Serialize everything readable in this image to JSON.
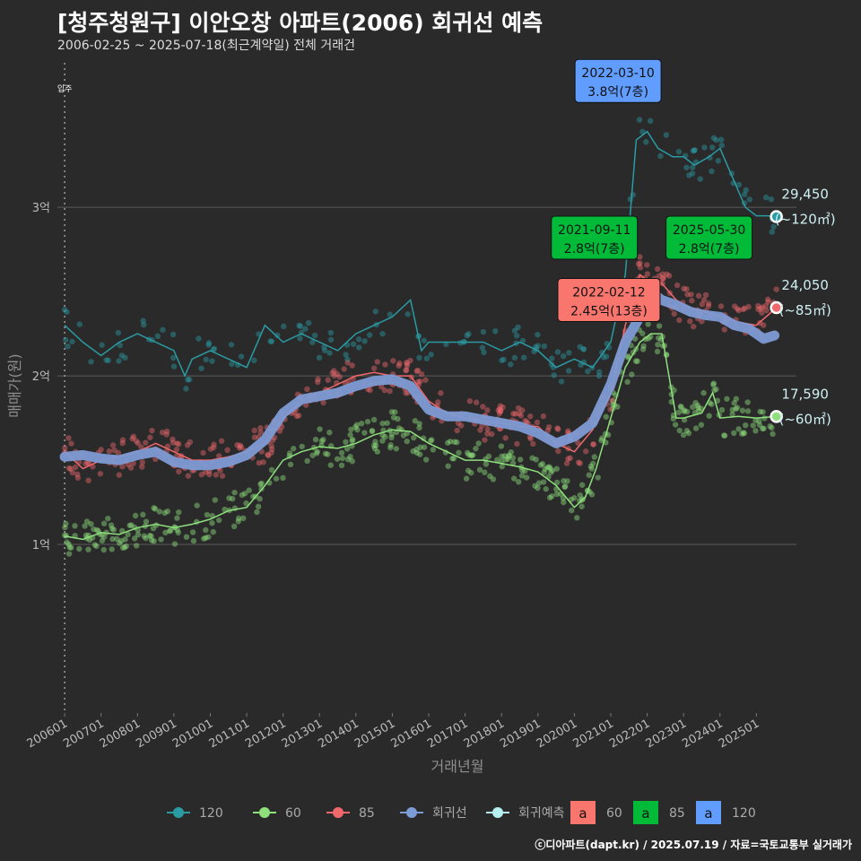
{
  "chart_data": {
    "type": "scatter",
    "title": "[청주청원구] 이안오창 아파트(2006) 회귀선 예측",
    "subtitle": "2006-02-25 ~ 2025-07-18(최근계약일) 전체 거래건",
    "xlabel": "거래년월",
    "ylabel": "매매가(원)",
    "credit": "ⓒ디아파트(dapt.kr) / 2025.07.19 / 자료=국토교통부 실거래가",
    "x_range": [
      2005.8,
      2026.1
    ],
    "ylim": [
      0,
      3.9
    ],
    "y_ticks": [
      {
        "v": 1,
        "label": "1억"
      },
      {
        "v": 2,
        "label": "2억"
      },
      {
        "v": 3,
        "label": "3억"
      }
    ],
    "x_ticks": [
      {
        "v": 2006,
        "label": "200601"
      },
      {
        "v": 2007,
        "label": "200701"
      },
      {
        "v": 2008,
        "label": "200801"
      },
      {
        "v": 2009,
        "label": "200901"
      },
      {
        "v": 2010,
        "label": "201001"
      },
      {
        "v": 2011,
        "label": "201101"
      },
      {
        "v": 2012,
        "label": "201201"
      },
      {
        "v": 2013,
        "label": "201301"
      },
      {
        "v": 2014,
        "label": "201401"
      },
      {
        "v": 2015,
        "label": "201501"
      },
      {
        "v": 2016,
        "label": "201601"
      },
      {
        "v": 2017,
        "label": "201701"
      },
      {
        "v": 2018,
        "label": "201801"
      },
      {
        "v": 2019,
        "label": "201901"
      },
      {
        "v": 2020,
        "label": "202001"
      },
      {
        "v": 2021,
        "label": "202101"
      },
      {
        "v": 2022,
        "label": "202201"
      },
      {
        "v": 2023,
        "label": "202301"
      },
      {
        "v": 2024,
        "label": "202401"
      },
      {
        "v": 2025,
        "label": "202501"
      }
    ],
    "vline": {
      "x": 2006.0,
      "label": "입주"
    },
    "colors": {
      "s120": "#2a9ba3",
      "s60": "#8ee07d",
      "s85": "#f0686c",
      "regression": "#7d9bd4",
      "forecast": "#b5f0f0",
      "box60": "#f8766d",
      "box85": "#00ba38",
      "box120": "#619cff"
    },
    "series": [
      {
        "name": "120",
        "key": "s120",
        "x": [
          2006.0,
          2006.5,
          2007.0,
          2007.5,
          2008.0,
          2008.5,
          2009.0,
          2009.3,
          2009.5,
          2010.0,
          2010.5,
          2011.0,
          2011.5,
          2012.0,
          2012.5,
          2013.0,
          2013.5,
          2014.0,
          2014.5,
          2015.0,
          2015.5,
          2015.8,
          2016.0,
          2016.5,
          2017.0,
          2017.5,
          2018.0,
          2018.5,
          2019.0,
          2019.5,
          2020.0,
          2020.5,
          2021.0,
          2021.4,
          2021.7,
          2022.0,
          2022.3,
          2022.7,
          2023.0,
          2023.3,
          2023.7,
          2024.0,
          2024.3,
          2024.7,
          2025.0,
          2025.3,
          2025.55
        ],
        "y": [
          2.3,
          2.2,
          2.12,
          2.2,
          2.25,
          2.2,
          2.15,
          2.0,
          2.1,
          2.15,
          2.1,
          2.05,
          2.3,
          2.2,
          2.25,
          2.2,
          2.15,
          2.25,
          2.3,
          2.35,
          2.45,
          2.15,
          2.2,
          2.2,
          2.2,
          2.2,
          2.15,
          2.2,
          2.15,
          2.05,
          2.1,
          2.05,
          2.2,
          2.6,
          3.4,
          3.45,
          3.35,
          3.3,
          3.3,
          3.25,
          3.3,
          3.35,
          3.2,
          3.0,
          2.95,
          2.95,
          2.945
        ]
      },
      {
        "name": "60",
        "key": "s60",
        "x": [
          2006.0,
          2006.5,
          2007.0,
          2007.5,
          2008.0,
          2008.5,
          2009.0,
          2009.5,
          2010.0,
          2010.5,
          2011.0,
          2011.5,
          2012.0,
          2012.5,
          2013.0,
          2013.5,
          2014.0,
          2014.5,
          2015.0,
          2015.5,
          2016.0,
          2016.5,
          2017.0,
          2017.5,
          2018.0,
          2018.5,
          2019.0,
          2019.5,
          2020.0,
          2020.3,
          2020.6,
          2021.0,
          2021.4,
          2021.8,
          2022.1,
          2022.4,
          2022.6,
          2022.8,
          2023.0,
          2023.5,
          2023.8,
          2024.0,
          2024.5,
          2025.0,
          2025.55
        ],
        "y": [
          1.05,
          1.03,
          1.07,
          1.06,
          1.1,
          1.12,
          1.1,
          1.12,
          1.15,
          1.2,
          1.22,
          1.35,
          1.5,
          1.55,
          1.58,
          1.57,
          1.6,
          1.65,
          1.68,
          1.67,
          1.6,
          1.55,
          1.5,
          1.5,
          1.48,
          1.46,
          1.43,
          1.35,
          1.22,
          1.28,
          1.45,
          1.75,
          2.05,
          2.2,
          2.25,
          2.25,
          2.0,
          1.75,
          1.75,
          1.78,
          1.9,
          1.75,
          1.76,
          1.75,
          1.759
        ]
      },
      {
        "name": "85",
        "key": "s85",
        "x": [
          2006.0,
          2006.5,
          2007.0,
          2007.5,
          2008.0,
          2008.5,
          2009.0,
          2009.5,
          2010.0,
          2010.5,
          2011.0,
          2011.5,
          2012.0,
          2012.5,
          2013.0,
          2013.5,
          2014.0,
          2014.5,
          2015.0,
          2015.5,
          2016.0,
          2016.5,
          2017.0,
          2017.5,
          2018.0,
          2018.5,
          2019.0,
          2019.5,
          2020.0,
          2020.5,
          2021.0,
          2021.4,
          2021.8,
          2022.1,
          2022.4,
          2022.8,
          2023.2,
          2023.6,
          2024.0,
          2024.5,
          2025.0,
          2025.55
        ],
        "y": [
          1.55,
          1.45,
          1.5,
          1.52,
          1.55,
          1.6,
          1.55,
          1.5,
          1.5,
          1.52,
          1.55,
          1.6,
          1.75,
          1.85,
          1.9,
          1.95,
          2.0,
          2.02,
          2.0,
          2.0,
          1.85,
          1.78,
          1.75,
          1.73,
          1.72,
          1.7,
          1.7,
          1.6,
          1.55,
          1.68,
          1.9,
          2.3,
          2.6,
          2.55,
          2.55,
          2.45,
          2.4,
          2.38,
          2.35,
          2.32,
          2.3,
          2.405
        ]
      },
      {
        "name": "회귀선",
        "key": "regression",
        "x": [
          2006.0,
          2006.5,
          2007.0,
          2007.5,
          2008.0,
          2008.5,
          2009.0,
          2009.5,
          2010.0,
          2010.5,
          2011.0,
          2011.5,
          2012.0,
          2012.5,
          2013.0,
          2013.5,
          2014.0,
          2014.5,
          2015.0,
          2015.5,
          2016.0,
          2016.5,
          2017.0,
          2017.5,
          2018.0,
          2018.5,
          2019.0,
          2019.5,
          2020.0,
          2020.5,
          2021.0,
          2021.4,
          2021.8,
          2022.1,
          2022.4,
          2022.8,
          2023.2,
          2023.6,
          2024.0,
          2024.4,
          2024.8,
          2025.2,
          2025.5
        ],
        "y": [
          1.52,
          1.53,
          1.51,
          1.5,
          1.53,
          1.55,
          1.49,
          1.47,
          1.47,
          1.49,
          1.53,
          1.62,
          1.78,
          1.86,
          1.88,
          1.9,
          1.94,
          1.97,
          1.98,
          1.94,
          1.8,
          1.76,
          1.76,
          1.74,
          1.72,
          1.7,
          1.66,
          1.6,
          1.64,
          1.72,
          1.95,
          2.2,
          2.35,
          2.5,
          2.45,
          2.42,
          2.38,
          2.36,
          2.35,
          2.3,
          2.28,
          2.22,
          2.24
        ]
      },
      {
        "name": "회귀예측",
        "key": "forecast",
        "x": [],
        "y": []
      }
    ],
    "annotations": [
      {
        "date": "2022-03-10",
        "price": "3.8억(7층)",
        "color": "box120",
        "x": 2021.2,
        "y": 3.75
      },
      {
        "date": "2021-09-11",
        "price": "2.8억(7층)",
        "color": "box85",
        "x": 2020.55,
        "y": 2.82
      },
      {
        "date": "2025-05-30",
        "price": "2.8억(7층)",
        "color": "box85",
        "x": 2023.7,
        "y": 2.82
      },
      {
        "date": "2022-02-12",
        "price": "2.45억(13층)",
        "color": "box60",
        "x": 2020.95,
        "y": 2.45
      }
    ],
    "end_labels": [
      {
        "value": "29,450",
        "area": "(~120㎡)",
        "series": "s120",
        "x": 2025.55,
        "y": 2.945
      },
      {
        "value": "24,050",
        "area": "(~85㎡)",
        "series": "s85",
        "x": 2025.55,
        "y": 2.405
      },
      {
        "value": "17,590",
        "area": "(~60㎡)",
        "series": "s60",
        "x": 2025.55,
        "y": 1.759
      }
    ],
    "legend_lines": [
      "120",
      "60",
      "85",
      "회귀선",
      "회귀예측"
    ],
    "legend_boxes": [
      {
        "glyph": "a",
        "label": "60",
        "color": "box60"
      },
      {
        "glyph": "a",
        "label": "85",
        "color": "box85"
      },
      {
        "glyph": "a",
        "label": "120",
        "color": "box120"
      }
    ]
  }
}
